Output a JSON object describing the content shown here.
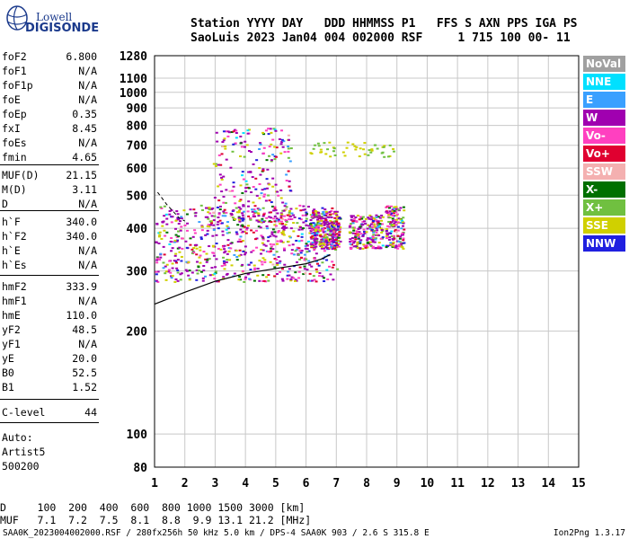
{
  "logo": {
    "line1": "Lowell",
    "line2": "DIGISONDE"
  },
  "header": {
    "line1": "Station YYYY DAY   DDD HHMMSS P1   FFS S AXN PPS IGA PS",
    "line2": "SaoLuis 2023 Jan04 004 002000 RSF     1 715 100 00- 11"
  },
  "params": [
    {
      "k": "foF2",
      "v": "6.800"
    },
    {
      "k": "foF1",
      "v": "N/A"
    },
    {
      "k": "foF1p",
      "v": "N/A"
    },
    {
      "k": "foE",
      "v": "N/A"
    },
    {
      "k": "foEp",
      "v": "0.35"
    },
    {
      "k": "fxI",
      "v": "8.45"
    },
    {
      "k": "foEs",
      "v": "N/A"
    },
    {
      "k": "fmin",
      "v": "4.65"
    },
    {
      "k": "MUF(D)",
      "v": "21.15"
    },
    {
      "k": "M(D)",
      "v": "3.11"
    },
    {
      "k": "D",
      "v": "N/A"
    },
    {
      "k": "h`F",
      "v": "340.0"
    },
    {
      "k": "h`F2",
      "v": "340.0"
    },
    {
      "k": "h`E",
      "v": "N/A"
    },
    {
      "k": "h`Es",
      "v": "N/A"
    },
    {
      "k": "hmF2",
      "v": "333.9"
    },
    {
      "k": "hmF1",
      "v": "N/A"
    },
    {
      "k": "hmE",
      "v": "110.0"
    },
    {
      "k": "yF2",
      "v": "48.5"
    },
    {
      "k": "yF1",
      "v": "N/A"
    },
    {
      "k": "yE",
      "v": "20.0"
    },
    {
      "k": "B0",
      "v": "52.5"
    },
    {
      "k": "B1",
      "v": "1.52"
    },
    {
      "k": "C-level",
      "v": "44"
    }
  ],
  "auto": [
    "Auto:",
    "Artist5",
    "500200"
  ],
  "legend": [
    {
      "label": "NoVal",
      "color": "#a0a0a0"
    },
    {
      "label": "NNE",
      "color": "#00e0ff"
    },
    {
      "label": "E",
      "color": "#3aa0ff"
    },
    {
      "label": "W",
      "color": "#a000b0"
    },
    {
      "label": "Vo-",
      "color": "#ff40c0"
    },
    {
      "label": "Vo+",
      "color": "#e00030"
    },
    {
      "label": "SSW",
      "color": "#f4b0b0"
    },
    {
      "label": "X-",
      "color": "#007000"
    },
    {
      "label": "X+",
      "color": "#70c040"
    },
    {
      "label": "SSE",
      "color": "#d0d000"
    },
    {
      "label": "NNW",
      "color": "#2020e0"
    }
  ],
  "bottom": {
    "line1": "D     100  200  400  600  800 1000 1500 3000 [km]",
    "line2": "MUF   7.1  7.2  7.5  8.1  8.8  9.9 13.1 21.2 [MHz]"
  },
  "footer": {
    "left": "SAA0K_2023004002000.RSF / 280fx256h 50 kHz 5.0 km / DPS-4 SAA0K 903 / 2.6 S 315.8 E",
    "right": "Ion2Png 1.3.17"
  },
  "chart_data": {
    "type": "scatter",
    "title": "",
    "xlabel": "",
    "ylabel": "",
    "xlim": [
      1,
      15
    ],
    "ylim": [
      80,
      1280
    ],
    "y_scale": "log",
    "x_ticks": [
      1,
      2,
      3,
      4,
      5,
      6,
      7,
      8,
      9,
      10,
      11,
      12,
      13,
      14,
      15
    ],
    "y_ticks": [
      80,
      100,
      200,
      300,
      400,
      500,
      600,
      700,
      800,
      900,
      1000,
      1100,
      1280
    ],
    "grid": true,
    "echo_regions": [
      {
        "name": "F-trace",
        "x_range": [
          1.0,
          7.0
        ],
        "y_range": [
          280,
          470
        ]
      },
      {
        "name": "F-trace-high",
        "x_range": [
          2.9,
          5.5
        ],
        "y_range": [
          420,
          800
        ]
      },
      {
        "name": "F-block-1",
        "x_range": [
          6.1,
          7.1
        ],
        "y_range": [
          350,
          450
        ]
      },
      {
        "name": "F-block-2",
        "x_range": [
          7.4,
          8.5
        ],
        "y_range": [
          350,
          440
        ]
      },
      {
        "name": "F-block-3",
        "x_range": [
          8.6,
          9.2
        ],
        "y_range": [
          350,
          470
        ]
      },
      {
        "name": "multihop",
        "x_range": [
          6.1,
          9.0
        ],
        "y_range": [
          650,
          720
        ]
      }
    ],
    "profile_curve": {
      "x": [
        1.0,
        2.0,
        3.0,
        4.0,
        5.0,
        6.0,
        6.5,
        6.8
      ],
      "y": [
        240,
        260,
        280,
        295,
        305,
        315,
        325,
        335
      ]
    },
    "dashed_curve": {
      "x": [
        1.1,
        1.4,
        1.8,
        2.0
      ],
      "y": [
        510,
        470,
        430,
        420
      ]
    }
  }
}
